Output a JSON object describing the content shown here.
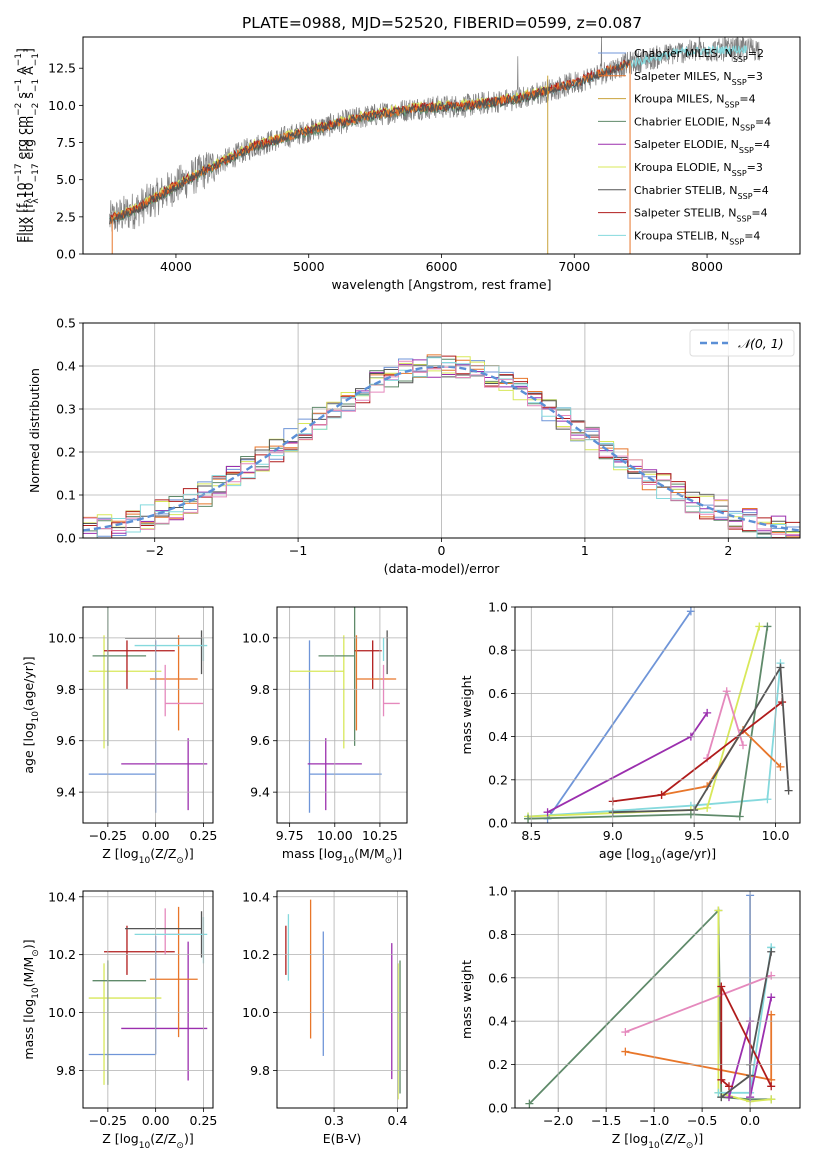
{
  "title": "PLATE=0988, MJD=52520, FIBERID=0599, z=0.087",
  "colors": {
    "chabrier_miles": "#6f95d8",
    "salpeter_miles": "#e8762a",
    "kroupa_miles": "#c9a33c",
    "chabrier_elodie": "#5f8a6a",
    "salpeter_elodie": "#9b2fae",
    "kroupa_elodie": "#d8e85a",
    "chabrier_stelib": "#555555",
    "salpeter_stelib": "#b01c1c",
    "kroupa_stelib": "#85d9dd",
    "pink": "#e589bd",
    "data": "#808080",
    "normal": "#5b8fd6"
  },
  "chart_data": [
    {
      "id": "spectrum",
      "type": "line",
      "title": "PLATE=0988, MJD=52520, FIBERID=0599, z=0.087",
      "xlabel": "wavelength [Angstrom, rest frame]",
      "ylabel_parts": [
        "Flux [f",
        "λ",
        "10",
        "−17",
        " erg cm",
        "−2",
        " s",
        "−1",
        " A",
        "−1",
        "]"
      ],
      "xlim": [
        3300,
        8700
      ],
      "ylim": [
        0,
        14.6
      ],
      "xticks": [
        4000,
        5000,
        6000,
        7000,
        8000
      ],
      "yticks": [
        0.0,
        2.5,
        5.0,
        7.5,
        10.0,
        12.5
      ],
      "legend_position": "top-right",
      "legend": [
        {
          "name": "Chabrier MILES, N",
          "sub": "SSP",
          "tail": "=2",
          "color": "chabrier_miles"
        },
        {
          "name": "Salpeter MILES, N",
          "sub": "SSP",
          "tail": "=3",
          "color": "salpeter_miles"
        },
        {
          "name": "Kroupa MILES, N",
          "sub": "SSP",
          "tail": "=4",
          "color": "kroupa_miles"
        },
        {
          "name": "Chabrier ELODIE, N",
          "sub": "SSP",
          "tail": "=4",
          "color": "chabrier_elodie"
        },
        {
          "name": "Salpeter ELODIE, N",
          "sub": "SSP",
          "tail": "=4",
          "color": "salpeter_elodie"
        },
        {
          "name": "Kroupa ELODIE, N",
          "sub": "SSP",
          "tail": "=3",
          "color": "kroupa_elodie"
        },
        {
          "name": "Chabrier STELIB, N",
          "sub": "SSP",
          "tail": "=4",
          "color": "chabrier_stelib"
        },
        {
          "name": "Salpeter STELIB, N",
          "sub": "SSP",
          "tail": "=4",
          "color": "salpeter_stelib"
        },
        {
          "name": "Kroupa STELIB, N",
          "sub": "SSP",
          "tail": "=4",
          "color": "kroupa_stelib"
        }
      ],
      "data_envelope": {
        "x": [
          3500,
          3700,
          4000,
          4300,
          4600,
          5000,
          5400,
          5800,
          6200,
          6600,
          7000,
          7400,
          7800,
          8300
        ],
        "y": [
          2.3,
          3.0,
          4.6,
          6.0,
          7.3,
          8.3,
          9.2,
          9.8,
          10.0,
          10.5,
          11.5,
          12.8,
          13.6,
          13.8
        ]
      },
      "model_end": {
        "STELIB": 7420,
        "ELODIE": 6800
      }
    },
    {
      "id": "residuals",
      "type": "histogram",
      "xlabel": "(data-model)/error",
      "ylabel": "Normed distribution",
      "xlim": [
        -2.5,
        2.5
      ],
      "ylim": [
        0,
        0.5
      ],
      "xticks": [
        -2,
        -1,
        0,
        1,
        2
      ],
      "yticks": [
        0.0,
        0.1,
        0.2,
        0.3,
        0.4,
        0.5
      ],
      "grid": true,
      "legend_position": "top-right",
      "reference": {
        "name": "𝒩(0, 1)",
        "mean": 0,
        "sigma": 1
      },
      "bin_width": 0.1,
      "series_colors": [
        "chabrier_miles",
        "salpeter_miles",
        "chabrier_elodie",
        "salpeter_elodie",
        "kroupa_elodie",
        "chabrier_stelib",
        "salpeter_stelib",
        "kroupa_stelib",
        "pink"
      ]
    },
    {
      "id": "age_vs_Z",
      "type": "errorbar",
      "xlabel_parts": [
        "Z [log",
        "10",
        "(Z/Z",
        "⊙",
        ")]"
      ],
      "ylabel_parts": [
        "age  [log",
        "10",
        "(age/yr)]"
      ],
      "xlim": [
        -0.38,
        0.3
      ],
      "ylim": [
        9.28,
        10.12
      ],
      "xticks": [
        -0.25,
        0.0,
        0.25
      ],
      "xticklabels": [
        "−0.25",
        "0.00",
        "0.25"
      ],
      "yticks": [
        9.4,
        9.6,
        9.8,
        10.0
      ],
      "points": [
        {
          "color": "chabrier_miles",
          "x": 0.0,
          "xe": [
            0.35,
            0.0
          ],
          "y": 9.47,
          "ye": [
            0.15,
            0.52
          ]
        },
        {
          "color": "salpeter_elodie",
          "x": 0.17,
          "xe": [
            0.35,
            0.1
          ],
          "y": 9.51,
          "ye": [
            0.18,
            0.1
          ]
        },
        {
          "color": "kroupa_elodie",
          "x": -0.27,
          "xe": [
            0.08,
            0.3
          ],
          "y": 9.87,
          "ye": [
            0.3,
            0.14
          ]
        },
        {
          "color": "chabrier_elodie",
          "x": -0.25,
          "xe": [
            0.08,
            0.2
          ],
          "y": 9.93,
          "ye": [
            0.35,
            0.2
          ]
        },
        {
          "color": "salpeter_stelib",
          "x": -0.15,
          "xe": [
            0.12,
            0.25
          ],
          "y": 9.95,
          "ye": [
            0.15,
            0.04
          ]
        },
        {
          "color": "salpeter_miles",
          "x": 0.12,
          "xe": [
            0.15,
            0.1
          ],
          "y": 9.84,
          "ye": [
            0.2,
            0.17
          ]
        },
        {
          "color": "pink",
          "x": 0.05,
          "xe": [
            0.0,
            0.2
          ],
          "y": 9.745,
          "ye": [
            0.05,
            0.15
          ]
        },
        {
          "color": "chabrier_stelib",
          "x": 0.24,
          "xe": [
            0.4,
            0.0
          ],
          "y": 9.999,
          "ye": [
            0.14,
            0.03
          ]
        },
        {
          "color": "kroupa_stelib",
          "x": 0.25,
          "xe": [
            0.36,
            0.02
          ],
          "y": 9.97,
          "ye": [
            0.06,
            0.03
          ]
        }
      ]
    },
    {
      "id": "age_vs_mass",
      "type": "errorbar",
      "xlabel_parts": [
        "mass [log",
        "10",
        "(M/M",
        "⊙",
        ")]"
      ],
      "xlim": [
        9.68,
        10.4
      ],
      "ylim": [
        9.28,
        10.12
      ],
      "xticks": [
        9.75,
        10.0,
        10.25
      ],
      "xticklabels": [
        "9.75",
        "10.00",
        "10.25"
      ],
      "yticks": [
        9.4,
        9.6,
        9.8,
        10.0
      ],
      "points": [
        {
          "color": "chabrier_miles",
          "x": 9.86,
          "xe": [
            0.0,
            0.4
          ],
          "y": 9.47,
          "ye": [
            0.15,
            0.52
          ]
        },
        {
          "color": "salpeter_elodie",
          "x": 9.95,
          "xe": [
            0.1,
            0.2
          ],
          "y": 9.51,
          "ye": [
            0.18,
            0.1
          ]
        },
        {
          "color": "kroupa_elodie",
          "x": 10.05,
          "xe": [
            0.3,
            0.0
          ],
          "y": 9.87,
          "ye": [
            0.3,
            0.14
          ]
        },
        {
          "color": "chabrier_elodie",
          "x": 10.11,
          "xe": [
            0.2,
            0.0
          ],
          "y": 9.93,
          "ye": [
            0.35,
            0.2
          ]
        },
        {
          "color": "salpeter_stelib",
          "x": 10.21,
          "xe": [
            0.1,
            0.05
          ],
          "y": 9.95,
          "ye": [
            0.15,
            0.04
          ]
        },
        {
          "color": "salpeter_miles",
          "x": 10.12,
          "xe": [
            0.0,
            0.22
          ],
          "y": 9.84,
          "ye": [
            0.2,
            0.17
          ]
        },
        {
          "color": "pink",
          "x": 10.27,
          "xe": [
            0.0,
            0.09
          ],
          "y": 9.745,
          "ye": [
            0.05,
            0.15
          ]
        },
        {
          "color": "chabrier_stelib",
          "x": 10.29,
          "xe": [
            0.0,
            0.0
          ],
          "y": 9.999,
          "ye": [
            0.14,
            0.03
          ]
        },
        {
          "color": "kroupa_stelib",
          "x": 10.27,
          "xe": [
            0.0,
            0.0
          ],
          "y": 9.97,
          "ye": [
            0.06,
            0.03
          ]
        }
      ]
    },
    {
      "id": "weights_vs_age",
      "type": "line",
      "xlabel_parts": [
        "age  [log",
        "10",
        "(age/yr)]"
      ],
      "ylabel": "mass weight",
      "xlim": [
        8.4,
        10.15
      ],
      "ylim": [
        0,
        1
      ],
      "xticks": [
        8.5,
        9.0,
        9.5,
        10.0
      ],
      "xticklabels": [
        "8.5",
        "9.0",
        "9.5",
        "10.0"
      ],
      "yticks": [
        0.0,
        0.2,
        0.4,
        0.6,
        0.8,
        1.0
      ],
      "grid": true,
      "series": [
        {
          "color": "chabrier_miles",
          "x": [
            8.6,
            9.48
          ],
          "y": [
            0.02,
            0.98
          ]
        },
        {
          "color": "kroupa_stelib",
          "x": [
            8.48,
            9.48,
            9.95,
            10.03
          ],
          "y": [
            0.03,
            0.08,
            0.11,
            0.74
          ]
        },
        {
          "color": "kroupa_elodie",
          "x": [
            8.48,
            9.48,
            9.58,
            9.9
          ],
          "y": [
            0.03,
            0.06,
            0.07,
            0.91
          ]
        },
        {
          "color": "chabrier_elodie",
          "x": [
            8.48,
            9.48,
            9.78,
            9.95
          ],
          "y": [
            0.02,
            0.04,
            0.03,
            0.91
          ]
        },
        {
          "color": "salpeter_elodie",
          "x": [
            8.6,
            9.48,
            9.58
          ],
          "y": [
            0.05,
            0.4,
            0.51
          ]
        },
        {
          "color": "salpeter_miles",
          "x": [
            9.3,
            9.58,
            9.8,
            10.03
          ],
          "y": [
            0.13,
            0.17,
            0.43,
            0.26
          ]
        },
        {
          "color": "pink",
          "x": [
            9.58,
            9.7,
            9.8
          ],
          "y": [
            0.3,
            0.61,
            0.36
          ]
        },
        {
          "color": "salpeter_stelib",
          "x": [
            9.0,
            9.3,
            10.04
          ],
          "y": [
            0.1,
            0.13,
            0.56
          ]
        },
        {
          "color": "chabrier_stelib",
          "x": [
            9.0,
            9.5,
            10.03,
            10.08
          ],
          "y": [
            0.05,
            0.06,
            0.72,
            0.15
          ]
        }
      ]
    },
    {
      "id": "mass_vs_Z",
      "type": "errorbar",
      "xlabel_parts": [
        "Z [log",
        "10",
        "(Z/Z",
        "⊙",
        ")]"
      ],
      "ylabel_parts": [
        "mass [log",
        "10",
        "(M/M",
        "⊙",
        ")]"
      ],
      "xlim": [
        -0.38,
        0.3
      ],
      "ylim": [
        9.67,
        10.42
      ],
      "xticks": [
        -0.25,
        0.0,
        0.25
      ],
      "xticklabels": [
        "−0.25",
        "0.00",
        "0.25"
      ],
      "yticks": [
        9.8,
        10.0,
        10.2,
        10.4
      ],
      "points": [
        {
          "color": "chabrier_miles",
          "x": 0.0,
          "xe": [
            0.35,
            0.0
          ],
          "y": 9.855,
          "ye": [
            0.0,
            0.41
          ]
        },
        {
          "color": "salpeter_elodie",
          "x": 0.17,
          "xe": [
            0.35,
            0.1
          ],
          "y": 9.945,
          "ye": [
            0.18,
            0.3
          ]
        },
        {
          "color": "kroupa_elodie",
          "x": -0.27,
          "xe": [
            0.08,
            0.3
          ],
          "y": 10.05,
          "ye": [
            0.3,
            0.12
          ]
        },
        {
          "color": "chabrier_elodie",
          "x": -0.25,
          "xe": [
            0.08,
            0.2
          ],
          "y": 10.11,
          "ye": [
            0.36,
            0.07
          ]
        },
        {
          "color": "salpeter_stelib",
          "x": -0.15,
          "xe": [
            0.12,
            0.25
          ],
          "y": 10.21,
          "ye": [
            0.08,
            0.09
          ]
        },
        {
          "color": "salpeter_miles",
          "x": 0.12,
          "xe": [
            0.15,
            0.1
          ],
          "y": 10.115,
          "ye": [
            0.2,
            0.25
          ]
        },
        {
          "color": "pink",
          "x": 0.05,
          "xe": [
            0.0,
            0.2
          ],
          "y": 10.27,
          "ye": [
            0.07,
            0.09
          ]
        },
        {
          "color": "chabrier_stelib",
          "x": 0.24,
          "xe": [
            0.4,
            0.0
          ],
          "y": 10.29,
          "ye": [
            0.1,
            0.06
          ]
        },
        {
          "color": "kroupa_stelib",
          "x": 0.25,
          "xe": [
            0.36,
            0.02
          ],
          "y": 10.27,
          "ye": [
            0.1,
            0.06
          ]
        }
      ]
    },
    {
      "id": "mass_vs_ebv",
      "type": "errorbar",
      "xlabel": "E(B-V)",
      "xlim": [
        0.21,
        0.415
      ],
      "ylim": [
        9.67,
        10.42
      ],
      "xticks": [
        0.3,
        0.4
      ],
      "xticklabels": [
        "0.3",
        "0.4"
      ],
      "yticks": [
        9.8,
        10.0,
        10.2,
        10.4
      ],
      "points": [
        {
          "color": "salpeter_stelib",
          "x": 0.224,
          "xe": [
            0,
            0
          ],
          "y": 10.21,
          "ye": [
            0.08,
            0.09
          ]
        },
        {
          "color": "kroupa_stelib",
          "x": 0.228,
          "xe": [
            0,
            0
          ],
          "y": 10.22,
          "ye": [
            0.11,
            0.12
          ]
        },
        {
          "color": "salpeter_miles",
          "x": 0.263,
          "xe": [
            0,
            0
          ],
          "y": 10.15,
          "ye": [
            0.24,
            0.24
          ]
        },
        {
          "color": "chabrier_miles",
          "x": 0.283,
          "xe": [
            0,
            0
          ],
          "y": 10.1,
          "ye": [
            0.25,
            0.18
          ]
        },
        {
          "color": "salpeter_elodie",
          "x": 0.391,
          "xe": [
            0,
            0
          ],
          "y": 10.01,
          "ye": [
            0.24,
            0.23
          ]
        },
        {
          "color": "kroupa_elodie",
          "x": 0.401,
          "xe": [
            0,
            0
          ],
          "y": 9.94,
          "ye": [
            0.24,
            0.23
          ]
        },
        {
          "color": "chabrier_elodie",
          "x": 0.404,
          "xe": [
            0,
            0
          ],
          "y": 9.97,
          "ye": [
            0.25,
            0.21
          ]
        }
      ]
    },
    {
      "id": "weights_vs_Z",
      "type": "line",
      "xlabel_parts": [
        "Z [log",
        "10",
        "(Z/Z",
        "⊙",
        ")]"
      ],
      "ylabel": "mass weight",
      "xlim": [
        -2.45,
        0.52
      ],
      "ylim": [
        0,
        1
      ],
      "xticks": [
        -2.0,
        -1.5,
        -1.0,
        -0.5,
        0.0
      ],
      "xticklabels": [
        "−2.0",
        "−1.5",
        "−1.0",
        "−0.5",
        "0.0"
      ],
      "yticks": [
        0.0,
        0.2,
        0.4,
        0.6,
        0.8,
        1.0
      ],
      "grid": true,
      "series": [
        {
          "color": "chabrier_elodie",
          "x": [
            -2.3,
            -0.33,
            -0.3,
            0.0,
            0.22
          ],
          "y": [
            0.02,
            0.91,
            0.05,
            0.04,
            0.04
          ]
        },
        {
          "color": "kroupa_elodie",
          "x": [
            -0.33,
            -0.33,
            0.0,
            0.22
          ],
          "y": [
            0.91,
            0.07,
            0.03,
            0.04
          ]
        },
        {
          "color": "chabrier_miles",
          "x": [
            0.0,
            0.0
          ],
          "y": [
            0.98,
            0.05
          ]
        },
        {
          "color": "kroupa_stelib",
          "x": [
            -0.33,
            0.0,
            0.22,
            0.22
          ],
          "y": [
            0.07,
            0.07,
            0.74,
            0.74
          ]
        },
        {
          "color": "salpeter_miles",
          "x": [
            -1.3,
            0.22,
            0.22
          ],
          "y": [
            0.26,
            0.13,
            0.43
          ]
        },
        {
          "color": "pink",
          "x": [
            -1.3,
            0.22
          ],
          "y": [
            0.35,
            0.61
          ]
        },
        {
          "color": "salpeter_elodie",
          "x": [
            -0.22,
            0.0,
            0.0,
            0.22
          ],
          "y": [
            0.05,
            0.4,
            0.05,
            0.51
          ]
        },
        {
          "color": "salpeter_stelib",
          "x": [
            -0.22,
            -0.3,
            -0.3,
            0.22
          ],
          "y": [
            0.1,
            0.13,
            0.56,
            0.1
          ]
        },
        {
          "color": "chabrier_stelib",
          "x": [
            -0.3,
            0.0,
            0.0,
            0.22
          ],
          "y": [
            0.05,
            0.15,
            0.2,
            0.72
          ]
        }
      ]
    }
  ]
}
